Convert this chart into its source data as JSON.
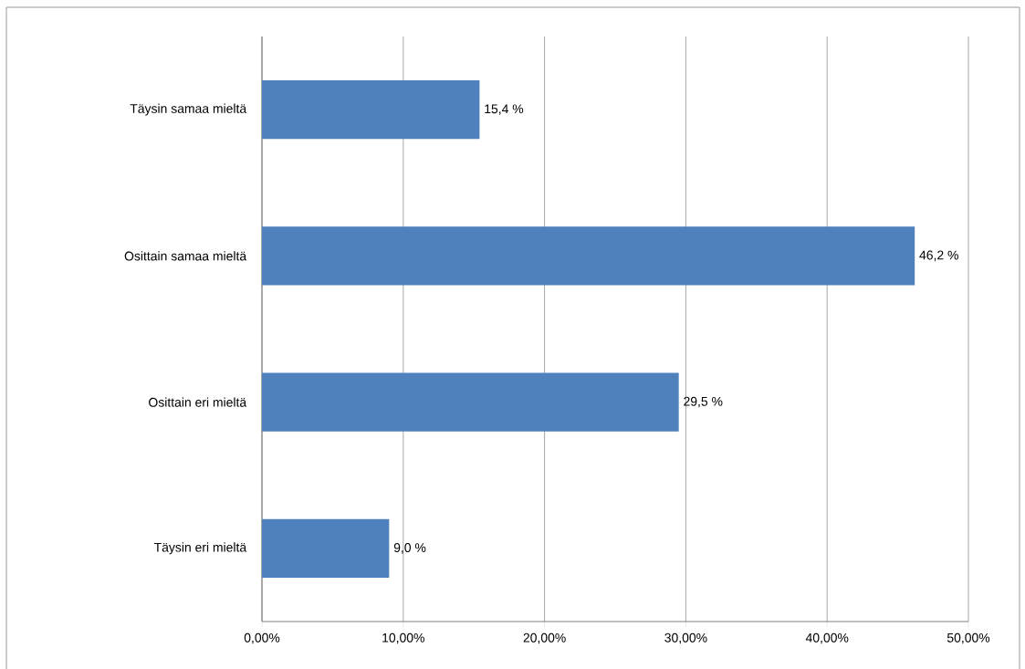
{
  "chart_data": {
    "type": "bar",
    "orientation": "horizontal",
    "categories": [
      "Täysin samaa mieltä",
      "Osittain samaa mieltä",
      "Osittain eri mieltä",
      "Täysin eri mieltä"
    ],
    "values": [
      15.4,
      46.2,
      29.5,
      9.0
    ],
    "value_labels": [
      "15,4 %",
      "46,2 %",
      "29,5 %",
      "9,0 %"
    ],
    "color": "#4f81bd",
    "xlim": [
      0,
      50
    ],
    "xticks": [
      {
        "value": 0,
        "label": "0,00%"
      },
      {
        "value": 10,
        "label": "10,00%"
      },
      {
        "value": 20,
        "label": "20,00%"
      },
      {
        "value": 30,
        "label": "30,00%"
      },
      {
        "value": 40,
        "label": "40,00%"
      },
      {
        "value": 50,
        "label": "50,00%"
      }
    ],
    "grid": "x"
  }
}
